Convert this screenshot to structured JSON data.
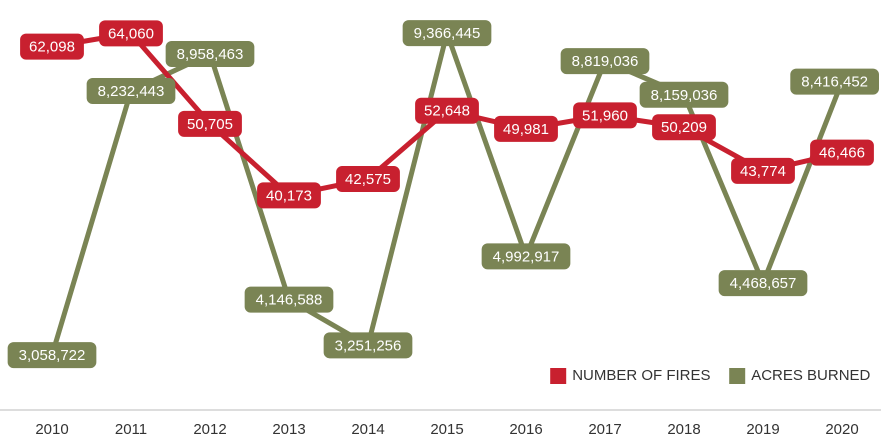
{
  "chart_data": {
    "type": "line",
    "categories": [
      "2010",
      "2011",
      "2012",
      "2013",
      "2014",
      "2015",
      "2016",
      "2017",
      "2018",
      "2019",
      "2020"
    ],
    "series": [
      {
        "name": "NUMBER OF FIRES",
        "color": "#c8202f",
        "values": [
          62098,
          64060,
          50705,
          40173,
          42575,
          52648,
          49981,
          51960,
          50209,
          43774,
          46466
        ],
        "value_labels": [
          "62,098",
          "64,060",
          "50,705",
          "40,173",
          "42,575",
          "52,648",
          "49,981",
          "51,960",
          "50,209",
          "43,774",
          "46,466"
        ]
      },
      {
        "name": "ACRES BURNED",
        "color": "#7a8454",
        "axis": "y2",
        "values": [
          3058722,
          8232443,
          8958463,
          4146588,
          3251256,
          9366445,
          4992917,
          8819036,
          8159036,
          4468657,
          8416452
        ],
        "value_labels": [
          "3,058,722",
          "8,232,443",
          "8,958,463",
          "4,146,588",
          "3,251,256",
          "9,366,445",
          "4,992,917",
          "8,819,036",
          "8,159,036",
          "4,468,657",
          "8,416,452"
        ]
      }
    ],
    "ylim": [
      10000,
      67500
    ],
    "y2lim": [
      2180000,
      9820000
    ],
    "legend": "lower right"
  }
}
